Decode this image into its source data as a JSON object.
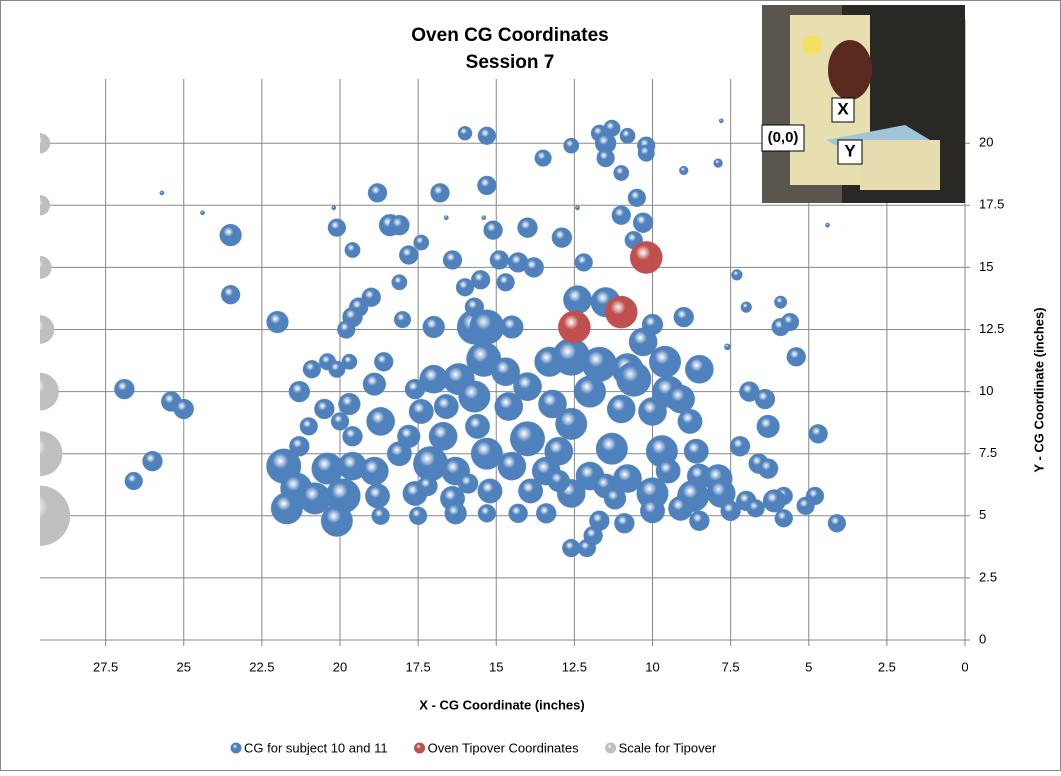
{
  "chart_data": {
    "type": "bubble",
    "title": "Oven CG Coordinates",
    "subtitle": "Session 7",
    "x_label": "X - CG Coordinate (inches)",
    "y_label": "Y - CG Coordinate (inches)",
    "annotations": [
      "(0,0)",
      "X",
      "Y"
    ],
    "xlim": [
      29.6,
      0
    ],
    "ylim": [
      0,
      25
    ],
    "xticks": [
      27.5,
      25,
      22.5,
      20,
      17.5,
      15,
      12.5,
      10,
      7.5,
      5,
      2.5,
      0
    ],
    "yticks": [
      0,
      2.5,
      5,
      7.5,
      10,
      12.5,
      15,
      17.5,
      20
    ],
    "grid": true,
    "legend": "bottom",
    "series": [
      {
        "name": "CG for subject 10 and 11",
        "color": "#4f81bd",
        "x": [
          26.9,
          25.4,
          25,
          26.6,
          26,
          25.7,
          24.4,
          23.5,
          23.5,
          22,
          20.1,
          20.2,
          19.6,
          18.8,
          18.4,
          18.1,
          17.8,
          17.4,
          16.8,
          16,
          15.3,
          15.3,
          15.1,
          16.4,
          14,
          13.5,
          12.6,
          11.7,
          11.3,
          11.5,
          11.5,
          10.8,
          10.2,
          10.2,
          11,
          10.5,
          11,
          10.3,
          10.6,
          12.9,
          12.2,
          14.3,
          13.8,
          14.9,
          14.7,
          15.5,
          16,
          18.1,
          18,
          19,
          19.4,
          19.6,
          19.8,
          17,
          15.7,
          15.3,
          14.5,
          15.7,
          12.4,
          11.5,
          10,
          9,
          7.3,
          7,
          5.9,
          5.9,
          5.6,
          5.4,
          4.4,
          7.9,
          7.8,
          9,
          16.6,
          15.4,
          12.4,
          7.6,
          21.3,
          20.9,
          20.4,
          20.1,
          19.7,
          18.6,
          18.9,
          17.6,
          17,
          16.2,
          15.4,
          14.7,
          14,
          13.3,
          12.6,
          11.7,
          10.8,
          10.3,
          9.6,
          8.5,
          9.5,
          10.6,
          12,
          13.2,
          14.6,
          15.7,
          16.6,
          17.4,
          18.7,
          19.7,
          20.5,
          20,
          21,
          9.1,
          6.9,
          6.4,
          6.3,
          4.7,
          7.2,
          14,
          12.6,
          11,
          10,
          8.8,
          16.7,
          15.6,
          17.8,
          19.6,
          21.3,
          15.3,
          13,
          11.3,
          9.7,
          8.6,
          18.1,
          21.8,
          20.4,
          19.6,
          18.9,
          17.1,
          16.3,
          14.5,
          13.4,
          12,
          10.8,
          9.5,
          8.5,
          7.9,
          6.6,
          6.3,
          5.8,
          5.1,
          4.8,
          4.1,
          5.8,
          6.1,
          7,
          7.8,
          8.7,
          10,
          11.5,
          12.6,
          13.9,
          15.2,
          16.4,
          17.6,
          18.8,
          19.9,
          21.4,
          21.7,
          20.8,
          20.1,
          18.7,
          17.5,
          16.3,
          15.3,
          14.3,
          13.4,
          12.6,
          12.1,
          11.9,
          11.7,
          10.9,
          10,
          9.1,
          7.5,
          8.5,
          6.7,
          17.2,
          15.9,
          13,
          11.2
        ],
        "y": [
          10.1,
          9.6,
          9.3,
          6.4,
          7.2,
          18,
          17.2,
          16.3,
          13.9,
          12.8,
          16.6,
          17.4,
          15.7,
          18,
          16.7,
          16.7,
          15.5,
          16,
          18,
          20.4,
          20.3,
          18.3,
          16.5,
          15.3,
          16.6,
          19.4,
          19.9,
          20.4,
          20.6,
          20,
          19.4,
          20.3,
          19.9,
          19.6,
          18.8,
          17.8,
          17.1,
          16.8,
          16.1,
          16.2,
          15.2,
          15.2,
          15,
          15.3,
          14.4,
          14.5,
          14.2,
          14.4,
          12.9,
          13.8,
          13.4,
          13,
          12.5,
          12.6,
          12.6,
          12.6,
          12.6,
          13.4,
          13.7,
          13.6,
          12.7,
          13,
          14.7,
          13.4,
          13.6,
          12.6,
          12.8,
          11.4,
          16.7,
          19.2,
          20.9,
          18.9,
          17,
          17,
          17.4,
          11.8,
          10,
          10.9,
          11.2,
          10.9,
          11.2,
          11.2,
          10.3,
          10.1,
          10.5,
          10.5,
          11.3,
          10.8,
          10.2,
          11.2,
          11.4,
          11.1,
          10.9,
          12,
          11.2,
          10.9,
          10,
          10.5,
          10,
          9.5,
          9.4,
          9.8,
          9.4,
          9.2,
          8.8,
          9.5,
          9.3,
          8.8,
          8.6,
          9.7,
          10,
          9.7,
          8.6,
          8.3,
          7.8,
          8.1,
          8.7,
          9.3,
          9.2,
          8.8,
          8.2,
          8.6,
          8.2,
          8.2,
          7.8,
          7.5,
          7.6,
          7.7,
          7.6,
          7.6,
          7.5,
          7,
          6.9,
          7,
          6.8,
          7.1,
          6.8,
          7,
          6.8,
          6.6,
          6.5,
          6.8,
          6.6,
          6.5,
          7.1,
          6.9,
          5.8,
          5.4,
          5.8,
          4.7,
          4.9,
          5.6,
          5.6,
          5.9,
          5.8,
          5.9,
          6.2,
          5.9,
          6,
          6,
          5.7,
          5.9,
          5.8,
          5.8,
          6.1,
          5.3,
          5.7,
          4.8,
          5,
          5,
          5.1,
          5.1,
          5.1,
          5.1,
          3.7,
          3.7,
          4.2,
          4.8,
          4.7,
          5.2,
          5.3,
          5.2,
          4.8,
          5.3,
          6.2,
          6.3,
          6.4,
          5.7
        ],
        "size": [
          1,
          1,
          1,
          0.8,
          1,
          0.05,
          0.05,
          1.2,
          0.9,
          1.2,
          0.8,
          0.05,
          0.6,
          0.9,
          1.2,
          1,
          0.9,
          0.6,
          0.9,
          0.5,
          0.8,
          0.9,
          0.9,
          0.9,
          1,
          0.7,
          0.6,
          0.7,
          0.7,
          1.1,
          0.8,
          0.6,
          0.8,
          0.7,
          0.6,
          0.8,
          0.9,
          1,
          0.8,
          1,
          0.8,
          1,
          1,
          0.9,
          0.8,
          0.9,
          0.8,
          0.6,
          0.7,
          0.9,
          0.9,
          1,
          0.8,
          1.2,
          3,
          3,
          1.3,
          0.9,
          2,
          2.2,
          1.1,
          1,
          0.3,
          0.3,
          0.4,
          0.8,
          0.8,
          0.9,
          0.05,
          0.2,
          0.05,
          0.2,
          0.05,
          0.05,
          0.05,
          0.1,
          1.1,
          0.8,
          0.7,
          0.7,
          0.6,
          0.9,
          1.3,
          1,
          2,
          2.5,
          3,
          2,
          2,
          2.2,
          3.5,
          3,
          2.5,
          2,
          2.5,
          2,
          2.5,
          3,
          2.5,
          2,
          2,
          2.5,
          1.5,
          1.5,
          2,
          1.2,
          1,
          0.8,
          0.8,
          2,
          1,
          1,
          1.3,
          0.9,
          1,
          3,
          2.5,
          2,
          2,
          1.5,
          2,
          1.5,
          1.3,
          1,
          1,
          2.5,
          2,
          2.5,
          2.5,
          1.5,
          1.5,
          3,
          2.5,
          2,
          2,
          3,
          2,
          2,
          2,
          2,
          2,
          1.5,
          1.5,
          2,
          1,
          1,
          0.8,
          0.8,
          0.8,
          0.8,
          0.8,
          1.3,
          1,
          2,
          2.5,
          2.5,
          1.5,
          2,
          1.5,
          1.5,
          1.5,
          1.5,
          1.5,
          3,
          2.5,
          2.5,
          2.5,
          2.5,
          0.8,
          0.8,
          1.2,
          0.8,
          0.9,
          1,
          0.8,
          0.8,
          0.9,
          1,
          1,
          1.5,
          1.5,
          1,
          1,
          0.8,
          1,
          1,
          1.2,
          1.2
        ]
      },
      {
        "name": "Oven Tipover Coordinates",
        "color": "#c0504d",
        "x": [
          12.5,
          11,
          10.2
        ],
        "y": [
          12.6,
          13.2,
          15.4
        ],
        "size": [
          2.6,
          2.6,
          2.6
        ]
      },
      {
        "name": "Scale for Tipover",
        "color": "#bfbfbf",
        "x": [
          29.6,
          29.6,
          29.6,
          29.6,
          29.6,
          29.6,
          29.6
        ],
        "y": [
          5,
          7.5,
          10,
          12.5,
          15,
          17.5,
          20
        ],
        "size": [
          9,
          5,
          3.5,
          2,
          1.3,
          1,
          1
        ]
      }
    ]
  }
}
